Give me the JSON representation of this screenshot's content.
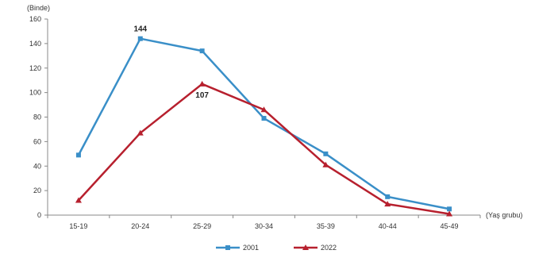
{
  "chart_data": {
    "type": "line",
    "y_unit_label": "(Binde)",
    "x_unit_label": "(Yaş grubu)",
    "categories": [
      "15-19",
      "20-24",
      "25-29",
      "30-34",
      "35-39",
      "40-44",
      "45-49"
    ],
    "ylim": [
      0,
      160
    ],
    "yticks": [
      0,
      20,
      40,
      60,
      80,
      100,
      120,
      140,
      160
    ],
    "grid": false,
    "legend_placement": "bottom-center",
    "series": [
      {
        "name": "2001",
        "color": "#3a8fc8",
        "marker": "square",
        "values": [
          49,
          144,
          134,
          79,
          50,
          15,
          5
        ]
      },
      {
        "name": "2022",
        "color": "#b7202e",
        "marker": "triangle",
        "values": [
          12,
          67,
          107,
          86,
          41,
          9,
          1
        ]
      }
    ],
    "annotations": [
      {
        "series": 0,
        "index": 1,
        "text": "144"
      },
      {
        "series": 1,
        "index": 2,
        "text": "107"
      }
    ]
  }
}
